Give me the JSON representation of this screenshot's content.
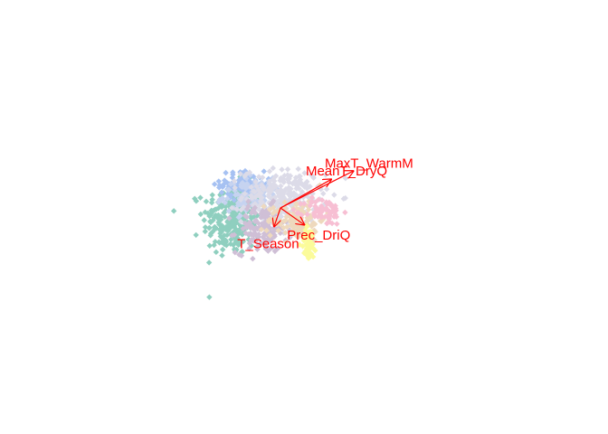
{
  "chart_data": {
    "type": "scatter",
    "title": "",
    "xlabel": "",
    "ylabel": "",
    "grid": false,
    "legend": "none",
    "xlim": [
      -4.0,
      6.0
    ],
    "ylim": [
      -3.5,
      3.5
    ],
    "arrow_color": "#ff0000",
    "point_clusters": [
      {
        "color": "#8fcfbf",
        "center": [
          -1.55,
          -0.35
        ],
        "spread": [
          0.45,
          0.55
        ],
        "count": 260
      },
      {
        "color": "#a6c1f2",
        "center": [
          -1.2,
          0.7
        ],
        "spread": [
          0.35,
          0.2
        ],
        "count": 90
      },
      {
        "color": "#c6d3f0",
        "center": [
          -0.9,
          0.35
        ],
        "spread": [
          0.45,
          0.25
        ],
        "count": 120
      },
      {
        "color": "#dcdbe8",
        "center": [
          0.1,
          0.35
        ],
        "spread": [
          0.65,
          0.4
        ],
        "count": 240
      },
      {
        "color": "#cfbfd6",
        "center": [
          -0.6,
          -0.65
        ],
        "spread": [
          0.4,
          0.35
        ],
        "count": 130
      },
      {
        "color": "#eed9bd",
        "center": [
          0.5,
          -0.35
        ],
        "spread": [
          0.45,
          0.3
        ],
        "count": 120
      },
      {
        "color": "#f7bfd3",
        "center": [
          1.35,
          -0.1
        ],
        "spread": [
          0.3,
          0.2
        ],
        "count": 70
      },
      {
        "color": "#fbfb9a",
        "center": [
          0.9,
          -1.05
        ],
        "spread": [
          0.12,
          0.25
        ],
        "count": 50
      }
    ],
    "arrows": [
      {
        "name": "MaxT_WarmM",
        "x": 2.3,
        "y": 1.1
      },
      {
        "name": "MeanT_DryQ",
        "x": 1.6,
        "y": 0.85
      },
      {
        "name": "Prec_DriQ",
        "x": 0.75,
        "y": -0.5
      },
      {
        "name": "T_Season",
        "x": -0.2,
        "y": -0.55
      }
    ]
  }
}
